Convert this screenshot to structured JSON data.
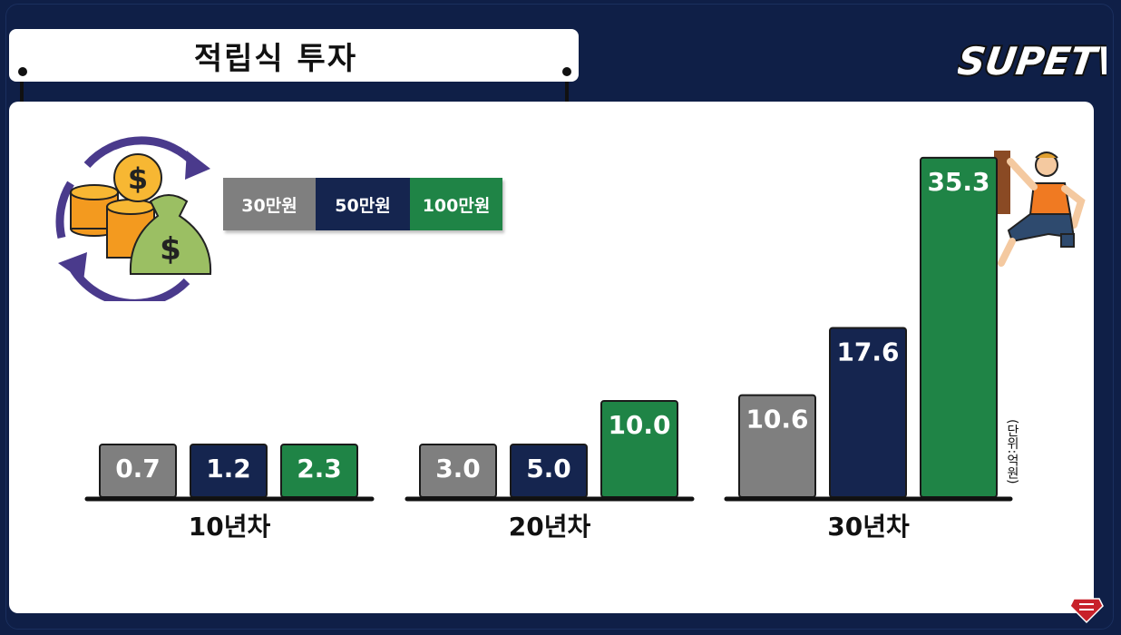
{
  "title": "적립식 투자",
  "logo_text": "SUPETV",
  "legend": [
    {
      "label": "30만원",
      "color": "#7f7f7f"
    },
    {
      "label": "50만원",
      "color": "#15254f"
    },
    {
      "label": "100만원",
      "color": "#1f8446"
    }
  ],
  "unit_label": "(단위:억원)",
  "chart_data": {
    "type": "bar",
    "title": "적립식 투자",
    "categories": [
      "10년차",
      "20년차",
      "30년차"
    ],
    "series": [
      {
        "name": "30만원",
        "values": [
          0.7,
          3.0,
          10.6
        ],
        "color": "#7f7f7f"
      },
      {
        "name": "50만원",
        "values": [
          1.2,
          5.0,
          17.6
        ],
        "color": "#15254f"
      },
      {
        "name": "100만원",
        "values": [
          2.3,
          10.0,
          35.3
        ],
        "color": "#1f8446"
      }
    ],
    "value_labels": [
      [
        "0.7",
        "3.0",
        "10.6"
      ],
      [
        "1.2",
        "5.0",
        "17.6"
      ],
      [
        "2.3",
        "10.0",
        "35.3"
      ]
    ],
    "xlabel": "",
    "ylabel": "",
    "unit": "억원",
    "grid": false,
    "legend_position": "top-left"
  }
}
